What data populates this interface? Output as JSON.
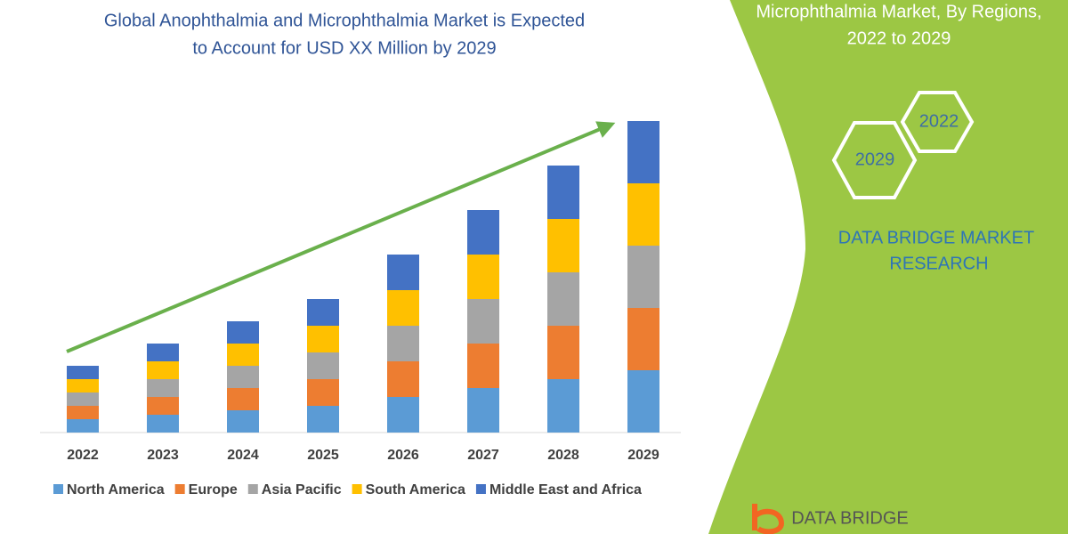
{
  "chart_data": {
    "type": "bar",
    "stacked": true,
    "title": [
      "Global Anophthalmia and Microphthalmia Market is Expected",
      "to Account for USD XX Million by 2029"
    ],
    "categories": [
      "2022",
      "2023",
      "2024",
      "2025",
      "2026",
      "2027",
      "2028",
      "2029"
    ],
    "series": [
      {
        "name": "North America",
        "color": "#5b9bd5",
        "values": [
          1.5,
          2,
          2.5,
          3,
          4,
          5,
          6,
          7
        ]
      },
      {
        "name": "Europe",
        "color": "#ed7d31",
        "values": [
          1.5,
          2,
          2.5,
          3,
          4,
          5,
          6,
          7
        ]
      },
      {
        "name": "Asia Pacific",
        "color": "#a5a5a5",
        "values": [
          1.5,
          2,
          2.5,
          3,
          4,
          5,
          6,
          7
        ]
      },
      {
        "name": "South America",
        "color": "#ffc000",
        "values": [
          1.5,
          2,
          2.5,
          3,
          4,
          5,
          6,
          7
        ]
      },
      {
        "name": "Middle East and Africa",
        "color": "#4472c4",
        "values": [
          1.5,
          2,
          2.5,
          3,
          4,
          5,
          6,
          7
        ]
      }
    ],
    "legend": "bottom"
  },
  "panel": {
    "title_lines": [
      "Microphthalmia Market, By Regions,",
      "2022 to 2029"
    ],
    "hexagons": [
      "2022",
      "2029"
    ],
    "brand_lines": [
      "DATA BRIDGE MARKET",
      "RESEARCH"
    ],
    "logo": "DATA BRIDGE"
  }
}
